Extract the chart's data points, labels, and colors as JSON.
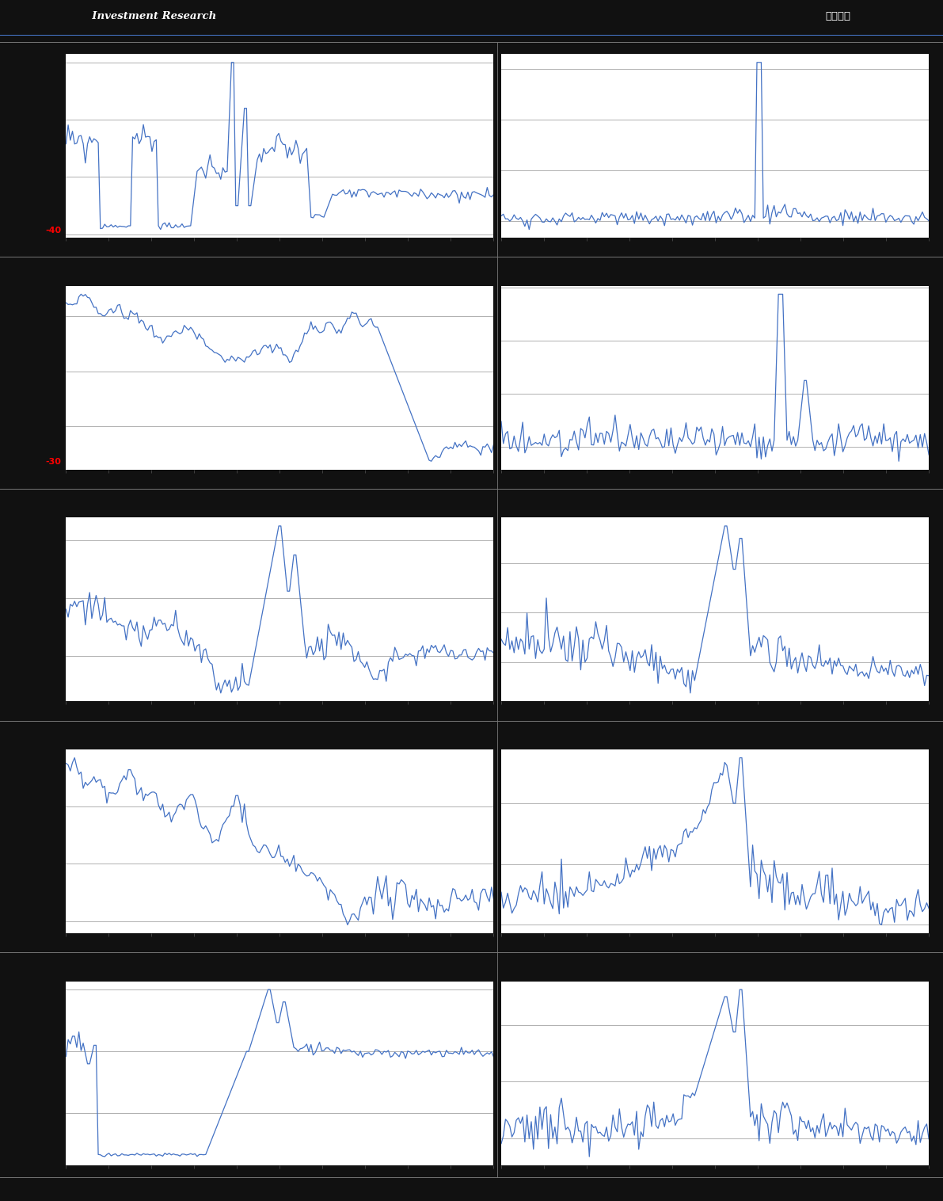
{
  "background_color": "#111111",
  "panel_bg": "#ffffff",
  "line_color": "#4472C4",
  "line_width": 0.9,
  "header_bar_color": "#1a3d6b",
  "footer_bar_color": "#2E75B6",
  "header_text": "  Investment Research",
  "header_right_text": "估値周报",
  "fig_width": 11.91,
  "fig_height": 15.16,
  "n_rows": 5,
  "n_cols": 2,
  "red_label_1": "-40",
  "red_label_2": "-30",
  "red_label_color": "#FF0000",
  "grid_color": "#999999",
  "grid_linewidth": 0.6,
  "separator_color": "#777777",
  "tick_color": "#555555"
}
